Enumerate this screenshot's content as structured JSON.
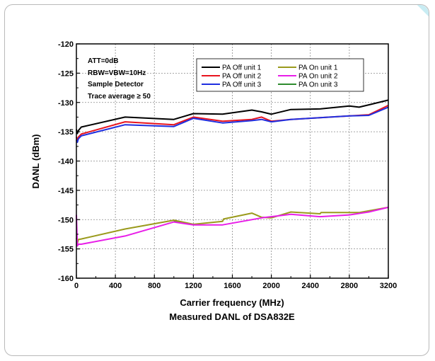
{
  "chart_data": {
    "type": "line",
    "title": "Measured DANL of DSA832E",
    "xlabel": "Carrier frequency (MHz)",
    "ylabel": "DANL (dBm)",
    "xlim": [
      0,
      3200
    ],
    "ylim": [
      -160,
      -120
    ],
    "x_ticks": [
      0,
      400,
      800,
      1200,
      1600,
      2000,
      2400,
      2800,
      3200
    ],
    "y_ticks": [
      -160,
      -155,
      -150,
      -145,
      -140,
      -135,
      -130,
      -125,
      -120
    ],
    "grid": true,
    "legend_position": "top-center",
    "annotations": [
      "ATT=0dB",
      "RBW=VBW=10Hz",
      "Sample Detector",
      "Trace average ≥ 50"
    ],
    "series": [
      {
        "name": "PA Off unit 1",
        "color": "#000000",
        "points": [
          [
            0,
            -134.6
          ],
          [
            10,
            -135.3
          ],
          [
            20,
            -134.8
          ],
          [
            50,
            -134.2
          ],
          [
            500,
            -132.5
          ],
          [
            1000,
            -132.9
          ],
          [
            1200,
            -131.9
          ],
          [
            1500,
            -132.0
          ],
          [
            1800,
            -131.3
          ],
          [
            1900,
            -131.6
          ],
          [
            2000,
            -132.0
          ],
          [
            2200,
            -131.2
          ],
          [
            2500,
            -131.1
          ],
          [
            2800,
            -130.6
          ],
          [
            2900,
            -130.8
          ],
          [
            3000,
            -130.4
          ],
          [
            3200,
            -129.6
          ]
        ]
      },
      {
        "name": "PA Off unit 2",
        "color": "#e8141e",
        "points": [
          [
            0,
            -135.9
          ],
          [
            10,
            -136.4
          ],
          [
            20,
            -135.9
          ],
          [
            50,
            -135.4
          ],
          [
            500,
            -133.3
          ],
          [
            1000,
            -133.8
          ],
          [
            1200,
            -132.5
          ],
          [
            1500,
            -133.2
          ],
          [
            1800,
            -132.9
          ],
          [
            1900,
            -132.5
          ],
          [
            2000,
            -133.2
          ],
          [
            2200,
            -132.9
          ],
          [
            2500,
            -132.6
          ],
          [
            2800,
            -132.3
          ],
          [
            3000,
            -132.1
          ],
          [
            3200,
            -130.5
          ]
        ]
      },
      {
        "name": "PA Off unit 3",
        "color": "#1f2fe0",
        "points": [
          [
            0,
            -136.4
          ],
          [
            10,
            -136.8
          ],
          [
            20,
            -136.2
          ],
          [
            50,
            -135.7
          ],
          [
            500,
            -133.8
          ],
          [
            1000,
            -134.1
          ],
          [
            1200,
            -132.7
          ],
          [
            1500,
            -133.5
          ],
          [
            1800,
            -133.1
          ],
          [
            1900,
            -132.9
          ],
          [
            2000,
            -133.3
          ],
          [
            2200,
            -132.9
          ],
          [
            2500,
            -132.6
          ],
          [
            2800,
            -132.3
          ],
          [
            3000,
            -132.2
          ],
          [
            3200,
            -130.8
          ]
        ]
      },
      {
        "name": "PA On unit 1",
        "color": "#9a9a1c",
        "points": [
          [
            0,
            -153.1
          ],
          [
            10,
            -154.1
          ],
          [
            20,
            -153.4
          ],
          [
            50,
            -153.3
          ],
          [
            500,
            -151.6
          ],
          [
            1000,
            -150.1
          ],
          [
            1200,
            -150.8
          ],
          [
            1500,
            -150.3
          ],
          [
            1510,
            -149.9
          ],
          [
            1800,
            -148.9
          ],
          [
            1900,
            -149.6
          ],
          [
            2000,
            -149.7
          ],
          [
            2200,
            -148.7
          ],
          [
            2500,
            -149.0
          ],
          [
            2510,
            -148.8
          ],
          [
            2900,
            -148.8
          ],
          [
            3200,
            -147.9
          ]
        ]
      },
      {
        "name": "PA On unit 2",
        "color": "#e81ee8",
        "points": [
          [
            0,
            -149.2
          ],
          [
            10,
            -154.5
          ],
          [
            20,
            -154.2
          ],
          [
            50,
            -154.2
          ],
          [
            500,
            -152.8
          ],
          [
            1000,
            -150.4
          ],
          [
            1200,
            -150.9
          ],
          [
            1500,
            -150.9
          ],
          [
            1800,
            -150.0
          ],
          [
            1900,
            -149.7
          ],
          [
            2000,
            -149.5
          ],
          [
            2200,
            -149.1
          ],
          [
            2500,
            -149.5
          ],
          [
            2800,
            -149.2
          ],
          [
            3000,
            -148.7
          ],
          [
            3200,
            -147.9
          ]
        ]
      },
      {
        "name": "PA On unit 3",
        "color": "#2e8b2e",
        "points": [
          [
            1000,
            -150.2
          ],
          [
            1100,
            -150.5
          ]
        ]
      }
    ]
  }
}
